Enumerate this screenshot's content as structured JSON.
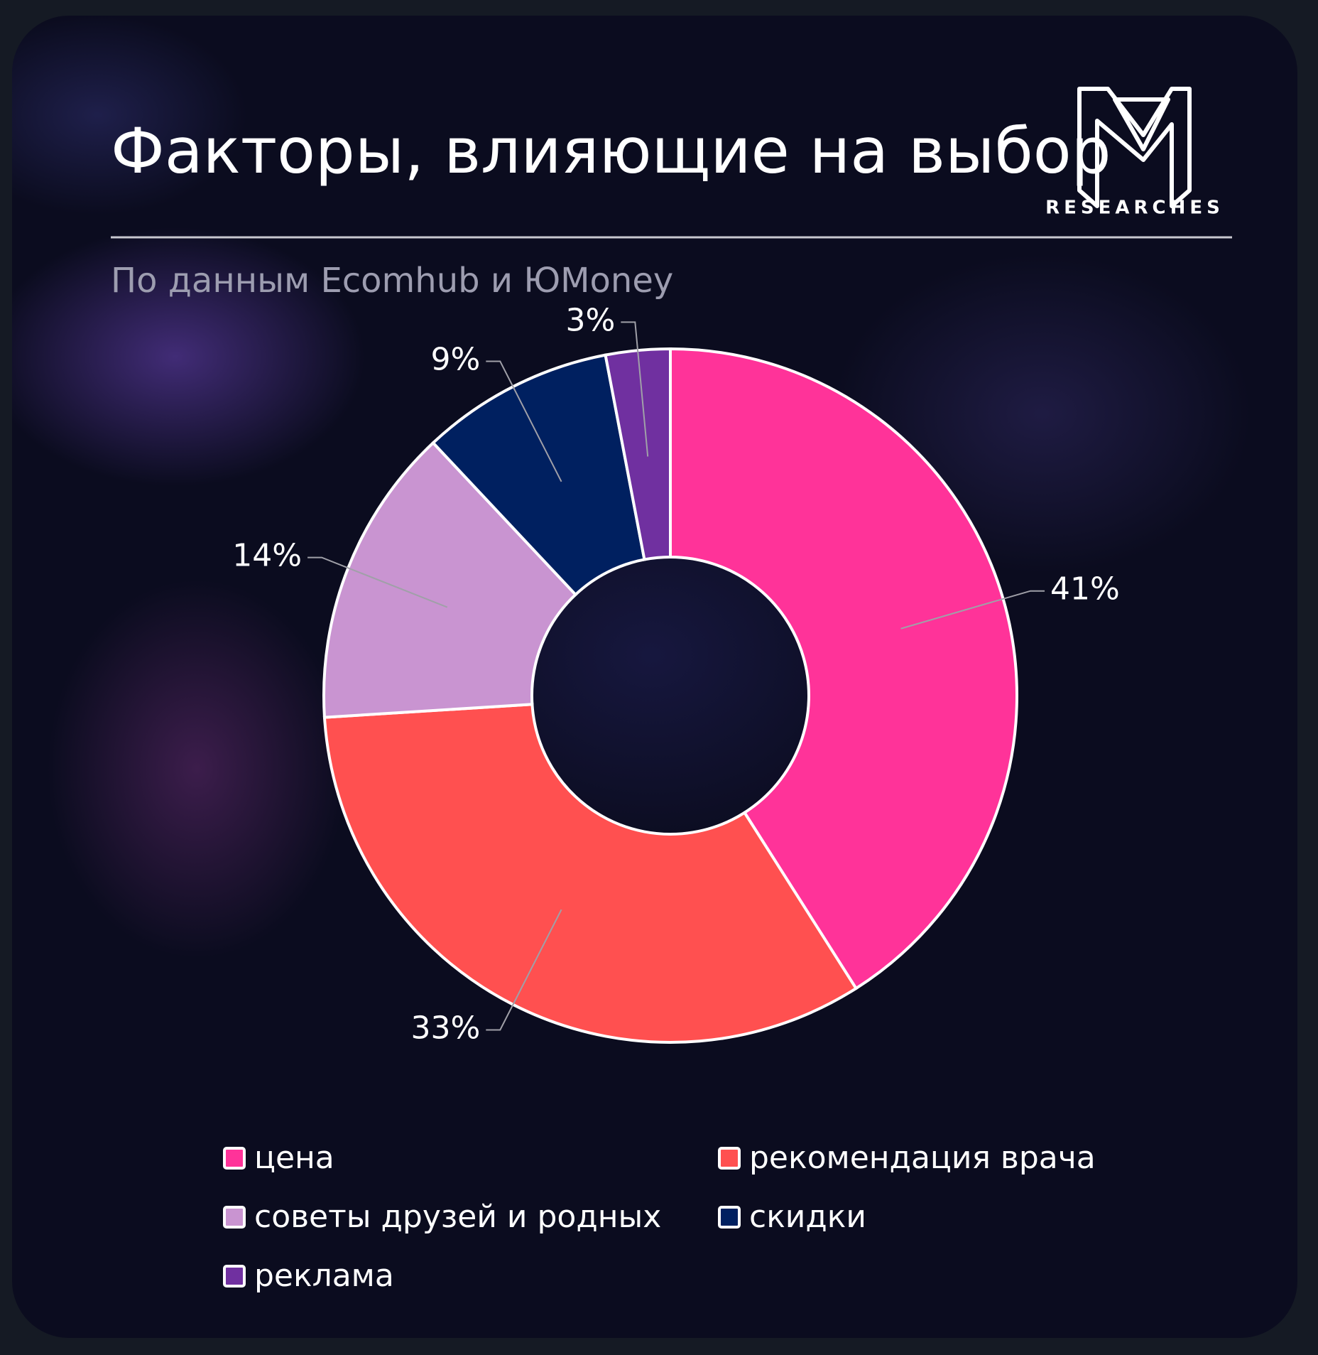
{
  "chart_data": {
    "type": "donut",
    "title": "Факторы, влияющие на выбор",
    "subtitle": "По данным Ecomhub и ЮMoney",
    "logo": "RESEARCHES",
    "categories": [
      "цена",
      "рекомендация врача",
      "советы друзей и родных",
      "скидки",
      "реклама"
    ],
    "values": [
      41,
      33,
      14,
      9,
      3
    ],
    "value_labels": [
      "41%",
      "33%",
      "14%",
      "9%",
      "3%"
    ],
    "colors": [
      "#ff3399",
      "#ff5050",
      "#c994d1",
      "#002060",
      "#7030a0"
    ]
  }
}
